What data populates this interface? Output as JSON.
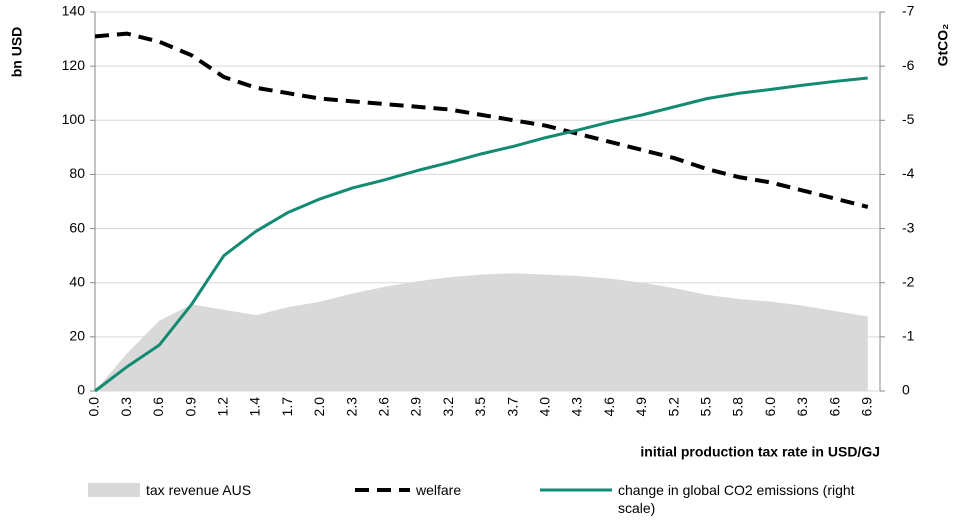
{
  "chart_data": {
    "type": "line",
    "y_label": "bn USD",
    "y2_label": "GtCO₂",
    "x_label": "initial production tax rate in USD/GJ",
    "categories": [
      "0.0",
      "0.3",
      "0.6",
      "0.9",
      "1.2",
      "1.4",
      "1.7",
      "2.0",
      "2.3",
      "2.6",
      "2.9",
      "3.2",
      "3.5",
      "3.7",
      "4.0",
      "4.3",
      "4.6",
      "4.9",
      "5.2",
      "5.5",
      "5.8",
      "6.0",
      "6.3",
      "6.6",
      "6.9"
    ],
    "ylim": [
      0,
      140
    ],
    "yticks": [
      0,
      20,
      40,
      60,
      80,
      100,
      120,
      140
    ],
    "y2lim": [
      0,
      -7
    ],
    "y2ticks": [
      0,
      -1,
      -2,
      -3,
      -4,
      -5,
      -6,
      -7
    ],
    "series": [
      {
        "name": "tax revenue AUS",
        "type": "area",
        "color": "#d9d9d9",
        "values": [
          0,
          14,
          26,
          32,
          30,
          28,
          31,
          33,
          36,
          38.5,
          40.5,
          42,
          43,
          43.5,
          43,
          42.5,
          41.5,
          40,
          38,
          35.5,
          34,
          33,
          31.5,
          29.5,
          27.5
        ]
      },
      {
        "name": "welfare",
        "type": "dashed",
        "color": "#000000",
        "values": [
          131,
          132,
          129,
          124,
          116,
          112,
          110,
          108,
          107,
          106,
          105,
          104,
          102,
          100,
          98,
          95,
          92,
          89,
          86,
          82,
          79,
          77,
          74,
          71,
          68
        ]
      },
      {
        "name": "change in global CO2 emissions (right scale)",
        "type": "line",
        "color": "#138a72",
        "axis": "y2",
        "values": [
          0,
          -0.45,
          -0.85,
          -1.6,
          -2.5,
          -2.95,
          -3.3,
          -3.55,
          -3.75,
          -3.9,
          -4.07,
          -4.22,
          -4.38,
          -4.52,
          -4.68,
          -4.82,
          -4.97,
          -5.1,
          -5.25,
          -5.4,
          -5.5,
          -5.57,
          -5.65,
          -5.72,
          -5.78
        ]
      }
    ]
  }
}
